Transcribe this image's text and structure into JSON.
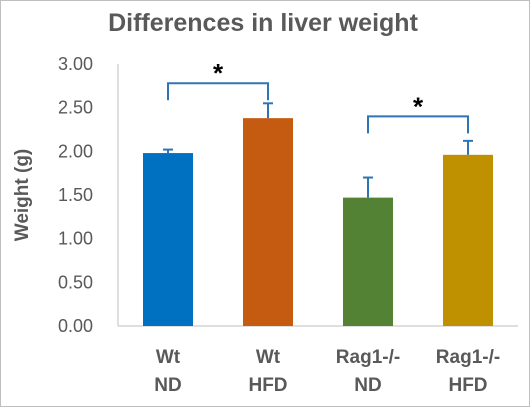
{
  "chart_data": {
    "type": "bar",
    "title": "Differences in liver weight",
    "xlabel": "",
    "ylabel": "Weight (g)",
    "ylim": [
      0,
      3
    ],
    "yticks": [
      "0.00",
      "0.50",
      "1.00",
      "1.50",
      "2.00",
      "2.50",
      "3.00"
    ],
    "ytick_values": [
      0,
      0.5,
      1,
      1.5,
      2,
      2.5,
      3
    ],
    "categories": [
      {
        "line1": "Wt",
        "line2": "ND"
      },
      {
        "line1": "Wt",
        "line2": "HFD"
      },
      {
        "line1": "Rag1-/-",
        "line2": "ND"
      },
      {
        "line1": "Rag1-/-",
        "line2": "HFD"
      }
    ],
    "values": [
      1.98,
      2.38,
      1.47,
      1.96
    ],
    "errors": [
      0.04,
      0.17,
      0.23,
      0.16
    ],
    "bar_colors": [
      "#0070c0",
      "#c55a11",
      "#548235",
      "#bf9000"
    ],
    "error_color": "#2e75b6",
    "bracket_color": "#2e75b6",
    "significance": [
      {
        "from": 0,
        "to": 1,
        "level": 2.78,
        "label": "*"
      },
      {
        "from": 2,
        "to": 3,
        "level": 2.4,
        "label": "*"
      }
    ],
    "grid": false
  }
}
